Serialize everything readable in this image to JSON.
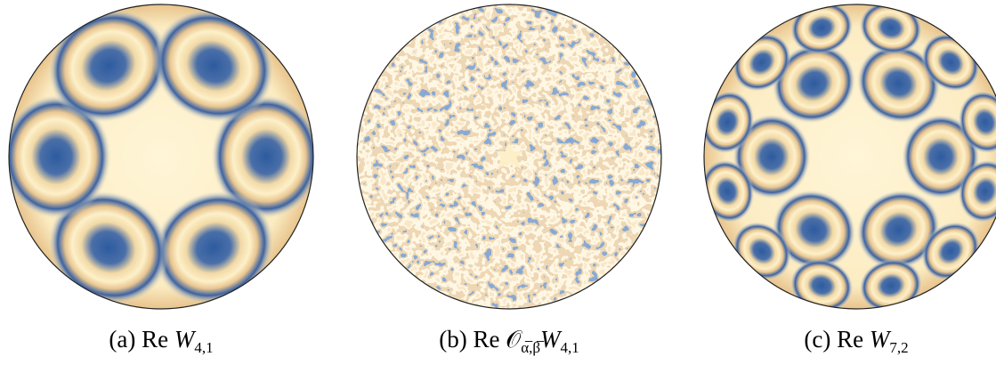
{
  "figure": {
    "panels": [
      {
        "label": "(a)",
        "operator": "Re",
        "symbol": "W",
        "subscript": "4,1"
      },
      {
        "label": "(b)",
        "operator": "Re",
        "symbol": "𝒪",
        "symbol_subscript": "α̅,β̅",
        "symbol2": "W",
        "subscript": "4,1"
      },
      {
        "label": "(c)",
        "operator": "Re",
        "symbol": "W",
        "subscript": "7,2"
      }
    ]
  }
}
